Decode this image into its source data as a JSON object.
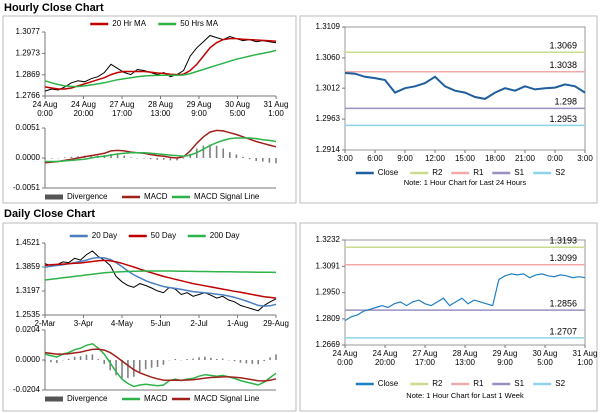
{
  "headings": [
    "Hourly Close Chart",
    "Daily Close Chart"
  ],
  "chart_data": [
    {
      "type": "line",
      "xlabels": [
        "24 Aug\n0:00",
        "24 Aug\n20:00",
        "27 Aug\n17:00",
        "28 Aug\n13:00",
        "29 Aug\n9:00",
        "30 Aug\n5:00",
        "31 Aug\n1:00"
      ],
      "ylim": [
        1.2766,
        1.3077
      ],
      "yticks": [
        1.2766,
        1.2869,
        1.2973,
        1.3077
      ],
      "price": {
        "color": "#000000",
        "values": [
          1.279,
          1.28,
          1.2795,
          1.281,
          1.283,
          1.284,
          1.2835,
          1.285,
          1.286,
          1.288,
          1.292,
          1.29,
          1.288,
          1.287,
          1.2895,
          1.289,
          1.288,
          1.287,
          1.288,
          1.286,
          1.287,
          1.289,
          1.296,
          1.3,
          1.303,
          1.306,
          1.305,
          1.304,
          1.3055,
          1.3045,
          1.3035,
          1.304,
          1.303,
          1.3035,
          1.303,
          1.3025
        ]
      },
      "series": [
        {
          "name": "20 Hr MA",
          "color": "#c00000",
          "values": [
            1.281,
            1.2805,
            1.28,
            1.28,
            1.2805,
            1.2815,
            1.2825,
            1.2835,
            1.2845,
            1.2855,
            1.287,
            1.288,
            1.2885,
            1.2885,
            1.2885,
            1.2885,
            1.2882,
            1.2878,
            1.2876,
            1.2872,
            1.287,
            1.2872,
            1.289,
            1.292,
            1.296,
            1.3,
            1.3025,
            1.304,
            1.3045,
            1.3045,
            1.3042,
            1.304,
            1.3038,
            1.3036,
            1.3034,
            1.3032
          ]
        },
        {
          "name": "50 Hrs MA",
          "color": "#2db34a",
          "values": [
            1.284,
            1.283,
            1.2822,
            1.2815,
            1.2812,
            1.2812,
            1.2815,
            1.282,
            1.2825,
            1.283,
            1.2838,
            1.2845,
            1.285,
            1.2855,
            1.286,
            1.2863,
            1.2865,
            1.2866,
            1.2867,
            1.2867,
            1.2867,
            1.2868,
            1.2875,
            1.2885,
            1.2895,
            1.2905,
            1.2915,
            1.2925,
            1.2935,
            1.2945,
            1.2952,
            1.296,
            1.2967,
            1.2973,
            1.298,
            1.2987
          ]
        }
      ]
    },
    {
      "type": "combo",
      "ylim": [
        -0.0051,
        0.0051
      ],
      "yticks": [
        {
          "value": -0.0051,
          "label": "-0.0051"
        },
        {
          "value": 0,
          "label": "0.0000"
        },
        {
          "value": 0.0051,
          "label": "0.0051"
        }
      ],
      "series": [
        {
          "name": "Divergence",
          "kind": "bar",
          "color": "#808080",
          "values": [
            -0.0002,
            -0.0001,
            0,
            0.0001,
            0.0002,
            0.0003,
            0.0004,
            0.0004,
            0.0004,
            0.0005,
            0.0007,
            0.0006,
            0.0004,
            0.0001,
            0,
            -0.0001,
            -0.0002,
            -0.0003,
            -0.0003,
            -0.0004,
            -0.0004,
            -0.0001,
            0.0007,
            0.0016,
            0.0021,
            0.0023,
            0.0021,
            0.0016,
            0.001,
            0.0006,
            0.0002,
            -0.0002,
            -0.0005,
            -0.0006,
            -0.0008,
            -0.0009
          ]
        },
        {
          "name": "MACD",
          "kind": "line",
          "color": "#a0201c",
          "values": [
            -0.0008,
            -0.0007,
            -0.0006,
            -0.0004,
            -0.0002,
            0,
            0.0002,
            0.0004,
            0.0006,
            0.0008,
            0.0012,
            0.0013,
            0.0012,
            0.001,
            0.0009,
            0.0008,
            0.0006,
            0.0004,
            0.0003,
            0.0001,
            0,
            0.0002,
            0.0012,
            0.0025,
            0.0036,
            0.0044,
            0.0047,
            0.0046,
            0.0043,
            0.004,
            0.0036,
            0.0032,
            0.0028,
            0.0025,
            0.0022,
            0.0019
          ]
        },
        {
          "name": "MACD Signal Line",
          "kind": "line",
          "color": "#2db34a",
          "values": [
            -0.0006,
            -0.0006,
            -0.0006,
            -0.0005,
            -0.0004,
            -0.0003,
            -0.0002,
            0,
            0.0002,
            0.0003,
            0.0005,
            0.0007,
            0.0008,
            0.0009,
            0.0009,
            0.0009,
            0.0008,
            0.0007,
            0.0006,
            0.0005,
            0.0004,
            0.0003,
            0.0005,
            0.0009,
            0.0015,
            0.0021,
            0.0026,
            0.003,
            0.0033,
            0.0034,
            0.0034,
            0.0034,
            0.0033,
            0.0031,
            0.003,
            0.0028
          ]
        }
      ]
    },
    {
      "type": "levels",
      "xlabels": [
        "3:00",
        "6:00",
        "9:00",
        "12:00",
        "15:00",
        "18:00",
        "21:00",
        "0:00",
        "3:00"
      ],
      "ylim": [
        1.2914,
        1.3109
      ],
      "yticks": [
        1.2914,
        1.2963,
        1.3012,
        {
          "value": 1.306,
          "label": "1.3060"
        },
        1.3109
      ],
      "series": [
        {
          "name": "Close",
          "color": "#1f5f9e",
          "values": [
            1.3036,
            1.3035,
            1.303,
            1.3028,
            1.3025,
            1.3005,
            1.3012,
            1.3015,
            1.302,
            1.303,
            1.3015,
            1.3008,
            1.3005,
            1.2998,
            1.2995,
            1.3005,
            1.3012,
            1.3008,
            1.3015,
            1.301,
            1.3012,
            1.3013,
            1.3018,
            1.3015,
            1.3005
          ]
        }
      ],
      "levels": [
        {
          "name": "R2",
          "color": "#c9dc8e",
          "value": 1.3069
        },
        {
          "name": "R1",
          "color": "#f2a9a9",
          "value": 1.3038
        },
        {
          "name": "S1",
          "color": "#9b8fc0",
          "value": 1.298
        },
        {
          "name": "S2",
          "color": "#8fd3e8",
          "value": 1.2953
        }
      ],
      "note": "Note: 1 Hour Chart for Last 24 Hours"
    },
    {
      "type": "line",
      "xlabels": [
        "2-Mar",
        "3-Apr",
        "4-May",
        "5-Jun",
        "2-Jul",
        "1-Aug",
        "29-Aug"
      ],
      "ylim": [
        1.2535,
        1.4521
      ],
      "yticks": [
        1.2535,
        1.3197,
        1.3859,
        1.4521
      ],
      "price": {
        "color": "#000000",
        "values": [
          1.395,
          1.39,
          1.392,
          1.4,
          1.398,
          1.41,
          1.405,
          1.42,
          1.43,
          1.415,
          1.405,
          1.39,
          1.36,
          1.345,
          1.335,
          1.33,
          1.34,
          1.335,
          1.328,
          1.32,
          1.315,
          1.33,
          1.325,
          1.31,
          1.315,
          1.305,
          1.31,
          1.315,
          1.308,
          1.3,
          1.305,
          1.295,
          1.29,
          1.28,
          1.275,
          1.27,
          1.265,
          1.28,
          1.29,
          1.298
        ]
      },
      "series": [
        {
          "name": "20 Day",
          "color": "#4a7fc0",
          "values": [
            1.385,
            1.388,
            1.39,
            1.392,
            1.395,
            1.398,
            1.401,
            1.405,
            1.41,
            1.412,
            1.411,
            1.407,
            1.398,
            1.387,
            1.375,
            1.364,
            1.356,
            1.348,
            1.342,
            1.337,
            1.332,
            1.329,
            1.327,
            1.324,
            1.321,
            1.318,
            1.316,
            1.315,
            1.313,
            1.311,
            1.309,
            1.306,
            1.302,
            1.297,
            1.292,
            1.286,
            1.28,
            1.278,
            1.279,
            1.283
          ]
        },
        {
          "name": "50 Day",
          "color": "#c00000",
          "values": [
            1.39,
            1.392,
            1.393,
            1.394,
            1.395,
            1.396,
            1.397,
            1.399,
            1.401,
            1.403,
            1.404,
            1.403,
            1.4,
            1.396,
            1.391,
            1.386,
            1.38,
            1.375,
            1.37,
            1.365,
            1.36,
            1.356,
            1.352,
            1.348,
            1.344,
            1.34,
            1.337,
            1.334,
            1.331,
            1.328,
            1.325,
            1.322,
            1.319,
            1.316,
            1.313,
            1.31,
            1.307,
            1.304,
            1.302,
            1.3
          ]
        },
        {
          "name": "200 Day",
          "color": "#2db34a",
          "values": [
            1.35,
            1.352,
            1.354,
            1.356,
            1.358,
            1.36,
            1.362,
            1.364,
            1.366,
            1.368,
            1.37,
            1.371,
            1.372,
            1.373,
            1.3735,
            1.374,
            1.3745,
            1.3748,
            1.375,
            1.375,
            1.375,
            1.3748,
            1.3745,
            1.3742,
            1.374,
            1.3738,
            1.3736,
            1.3734,
            1.3732,
            1.373,
            1.3728,
            1.3726,
            1.3724,
            1.3722,
            1.372,
            1.3718,
            1.3716,
            1.3714,
            1.3712,
            1.371
          ]
        }
      ]
    },
    {
      "type": "combo",
      "ylim": [
        -0.0204,
        0.0204
      ],
      "yticks": [
        {
          "value": -0.0204,
          "label": "-0.0204"
        },
        {
          "value": 0,
          "label": "0.0000"
        },
        {
          "value": 0.0204,
          "label": "0.0204"
        }
      ],
      "series": [
        {
          "name": "Divergence",
          "kind": "bar",
          "color": "#808080",
          "values": [
            -0.001,
            -0.0015,
            -0.002,
            0,
            0.0008,
            0.0022,
            0.0026,
            0.0037,
            0.0038,
            0.0006,
            -0.0027,
            -0.007,
            -0.0104,
            -0.0123,
            -0.0123,
            -0.0114,
            -0.0083,
            -0.0062,
            -0.0053,
            -0.0047,
            -0.0033,
            -0.0002,
            0.0007,
            -0.0002,
            0.0006,
            0.0009,
            0.0019,
            0.0023,
            0.0014,
            0.0007,
            0.001,
            0,
            -0.0008,
            -0.0019,
            -0.0023,
            -0.0026,
            -0.0029,
            -0.0007,
            0.0018,
            0.0038
          ]
        },
        {
          "name": "MACD",
          "kind": "line",
          "color": "#2db34a",
          "values": [
            0.004,
            0.003,
            0.002,
            0.004,
            0.005,
            0.007,
            0.008,
            0.01,
            0.011,
            0.008,
            0.004,
            -0.002,
            -0.008,
            -0.013,
            -0.016,
            -0.018,
            -0.017,
            -0.0165,
            -0.017,
            -0.0175,
            -0.017,
            -0.014,
            -0.013,
            -0.014,
            -0.013,
            -0.0125,
            -0.011,
            -0.01,
            -0.0105,
            -0.011,
            -0.0105,
            -0.0115,
            -0.0125,
            -0.014,
            -0.015,
            -0.016,
            -0.017,
            -0.015,
            -0.012,
            -0.009
          ]
        },
        {
          "name": "MACD Signal Line",
          "kind": "line",
          "color": "#a0201c",
          "values": [
            0.005,
            0.0045,
            0.004,
            0.004,
            0.0042,
            0.0048,
            0.0054,
            0.0063,
            0.0072,
            0.0074,
            0.0067,
            0.005,
            0.0024,
            -0.0007,
            -0.0037,
            -0.0066,
            -0.0087,
            -0.0103,
            -0.0117,
            -0.0128,
            -0.0137,
            -0.0138,
            -0.0137,
            -0.0138,
            -0.0136,
            -0.0134,
            -0.0129,
            -0.0123,
            -0.0119,
            -0.0117,
            -0.0115,
            -0.0115,
            -0.0117,
            -0.0121,
            -0.0127,
            -0.0134,
            -0.0141,
            -0.0143,
            -0.0138,
            -0.0128
          ]
        }
      ]
    },
    {
      "type": "levels",
      "xlabels": [
        "24 Aug\n0:00",
        "24 Aug\n20:00",
        "27 Aug\n17:00",
        "28 Aug\n13:00",
        "29 Aug\n9:00",
        "30 Aug\n5:00",
        "31 Aug\n1:00"
      ],
      "ylim": [
        1.2669,
        1.3232
      ],
      "yticks": [
        1.2669,
        1.2809,
        {
          "value": 1.295,
          "label": "1.2950"
        },
        1.3091,
        1.3232
      ],
      "series": [
        {
          "name": "Close",
          "color": "#1f7fc4",
          "values": [
            1.28,
            1.282,
            1.283,
            1.285,
            1.286,
            1.287,
            1.288,
            1.287,
            1.289,
            1.29,
            1.288,
            1.29,
            1.291,
            1.289,
            1.288,
            1.29,
            1.292,
            1.288,
            1.29,
            1.292,
            1.289,
            1.291,
            1.29,
            1.289,
            1.288,
            1.302,
            1.304,
            1.305,
            1.3045,
            1.305,
            1.303,
            1.3045,
            1.305,
            1.304,
            1.3035,
            1.3045,
            1.304,
            1.303,
            1.3035,
            1.303
          ]
        }
      ],
      "levels": [
        {
          "name": "R2",
          "color": "#c9dc8e",
          "value": 1.3193
        },
        {
          "name": "R1",
          "color": "#f2a9a9",
          "value": 1.3099
        },
        {
          "name": "S1",
          "color": "#9b8fc0",
          "value": 1.2856
        },
        {
          "name": "S2",
          "color": "#8fd3e8",
          "value": 1.2707
        }
      ],
      "note": "Note: 1 Hour Chart for Last 1 Week"
    }
  ]
}
